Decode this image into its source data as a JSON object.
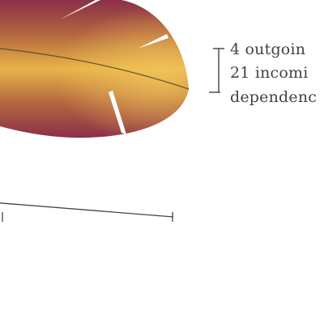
{
  "legend": {
    "lines": [
      "4 outgoin",
      "21 incomi",
      "dependenc"
    ]
  },
  "colors": {
    "leaf_center": "#e8b448",
    "leaf_edge": "#8a2f48",
    "midrib": "#5a4a2a",
    "ink": "#4a4040"
  }
}
